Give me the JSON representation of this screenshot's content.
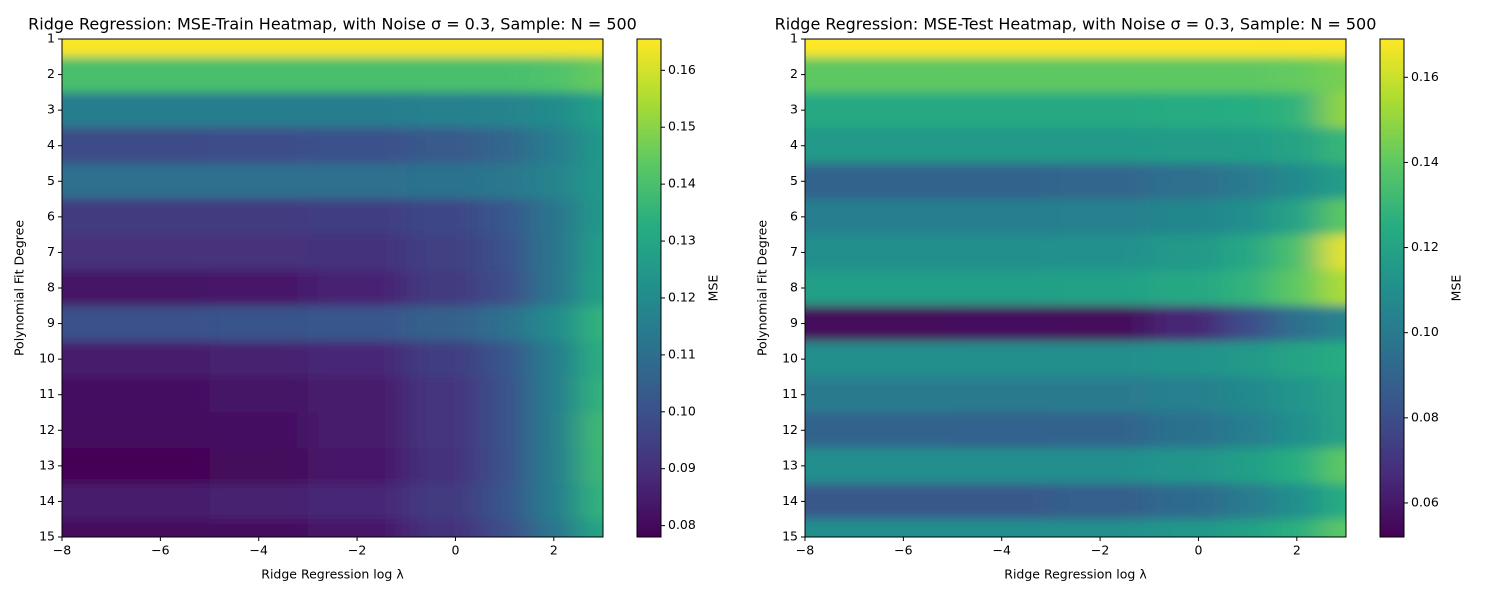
{
  "chart_data": [
    {
      "type": "heatmap",
      "title": "Ridge Regression: MSE-Train Heatmap, with Noise σ = 0.3, Sample: N = 500",
      "x_label": "Ridge Regression log λ",
      "y_label": "Polynomial Fit Degree",
      "colorbar_label": "MSE",
      "colormap": "viridis",
      "x": [
        -8,
        -6,
        -4,
        -2,
        0,
        1,
        2,
        3
      ],
      "y": [
        1,
        2,
        3,
        4,
        5,
        6,
        7,
        8,
        9,
        10,
        11,
        12,
        13,
        14,
        15
      ],
      "values": [
        [
          0.165,
          0.165,
          0.165,
          0.165,
          0.165,
          0.165,
          0.165,
          0.165
        ],
        [
          0.14,
          0.14,
          0.14,
          0.14,
          0.14,
          0.14,
          0.141,
          0.145
        ],
        [
          0.115,
          0.115,
          0.115,
          0.115,
          0.116,
          0.117,
          0.12,
          0.128
        ],
        [
          0.098,
          0.098,
          0.099,
          0.1,
          0.103,
          0.107,
          0.115,
          0.125
        ],
        [
          0.11,
          0.11,
          0.11,
          0.11,
          0.111,
          0.113,
          0.117,
          0.125
        ],
        [
          0.093,
          0.093,
          0.093,
          0.094,
          0.097,
          0.102,
          0.112,
          0.125
        ],
        [
          0.09,
          0.09,
          0.09,
          0.091,
          0.095,
          0.1,
          0.112,
          0.127
        ],
        [
          0.083,
          0.083,
          0.084,
          0.087,
          0.093,
          0.099,
          0.112,
          0.128
        ],
        [
          0.1,
          0.1,
          0.101,
          0.102,
          0.105,
          0.11,
          0.12,
          0.135
        ],
        [
          0.085,
          0.085,
          0.086,
          0.088,
          0.094,
          0.101,
          0.115,
          0.133
        ],
        [
          0.082,
          0.082,
          0.083,
          0.085,
          0.092,
          0.1,
          0.115,
          0.135
        ],
        [
          0.081,
          0.081,
          0.082,
          0.085,
          0.092,
          0.1,
          0.115,
          0.138
        ],
        [
          0.079,
          0.079,
          0.08,
          0.084,
          0.091,
          0.1,
          0.115,
          0.137
        ],
        [
          0.085,
          0.085,
          0.086,
          0.088,
          0.093,
          0.101,
          0.115,
          0.135
        ],
        [
          0.08,
          0.08,
          0.081,
          0.084,
          0.091,
          0.099,
          0.112,
          0.13
        ]
      ],
      "xlim": [
        -8,
        3
      ],
      "xticks": [
        {
          "value": -8,
          "label": "−8"
        },
        {
          "value": -6,
          "label": "−6"
        },
        {
          "value": -4,
          "label": "−4"
        },
        {
          "value": -2,
          "label": "−2"
        },
        0,
        2
      ],
      "ylim": [
        15,
        1
      ],
      "yticks": [
        1,
        2,
        3,
        4,
        5,
        6,
        7,
        8,
        9,
        10,
        11,
        12,
        13,
        14,
        15
      ],
      "clim": [
        0.078,
        0.1655
      ],
      "cticks": [
        0.08,
        0.09,
        {
          "value": 0.1,
          "label": "0.10"
        },
        0.11,
        0.12,
        0.13,
        0.14,
        0.15,
        0.16
      ]
    },
    {
      "type": "heatmap",
      "title": "Ridge Regression: MSE-Test Heatmap, with Noise σ = 0.3, Sample: N = 500",
      "x_label": "Ridge Regression log λ",
      "y_label": "Polynomial Fit Degree",
      "colorbar_label": "MSE",
      "colormap": "viridis",
      "x": [
        -8,
        -6,
        -4,
        -2,
        0,
        1,
        2,
        3
      ],
      "y": [
        1,
        2,
        3,
        4,
        5,
        6,
        7,
        8,
        9,
        10,
        11,
        12,
        13,
        14,
        15
      ],
      "values": [
        [
          0.169,
          0.169,
          0.169,
          0.169,
          0.169,
          0.169,
          0.169,
          0.169
        ],
        [
          0.14,
          0.14,
          0.14,
          0.14,
          0.14,
          0.14,
          0.141,
          0.145
        ],
        [
          0.123,
          0.123,
          0.123,
          0.123,
          0.124,
          0.125,
          0.128,
          0.15
        ],
        [
          0.115,
          0.115,
          0.115,
          0.115,
          0.116,
          0.117,
          0.12,
          0.13
        ],
        [
          0.09,
          0.09,
          0.09,
          0.091,
          0.095,
          0.1,
          0.108,
          0.118
        ],
        [
          0.102,
          0.102,
          0.102,
          0.103,
          0.106,
          0.11,
          0.12,
          0.14
        ],
        [
          0.11,
          0.11,
          0.11,
          0.111,
          0.115,
          0.122,
          0.135,
          0.165
        ],
        [
          0.118,
          0.118,
          0.118,
          0.119,
          0.122,
          0.128,
          0.14,
          0.155
        ],
        [
          0.055,
          0.055,
          0.056,
          0.055,
          0.065,
          0.08,
          0.095,
          0.105
        ],
        [
          0.11,
          0.11,
          0.11,
          0.11,
          0.112,
          0.115,
          0.12,
          0.125
        ],
        [
          0.1,
          0.1,
          0.1,
          0.1,
          0.103,
          0.107,
          0.113,
          0.12
        ],
        [
          0.09,
          0.09,
          0.089,
          0.09,
          0.096,
          0.102,
          0.11,
          0.12
        ],
        [
          0.11,
          0.11,
          0.11,
          0.11,
          0.113,
          0.118,
          0.125,
          0.14
        ],
        [
          0.085,
          0.085,
          0.085,
          0.087,
          0.093,
          0.1,
          0.11,
          0.125
        ],
        [
          0.11,
          0.11,
          0.11,
          0.111,
          0.114,
          0.119,
          0.126,
          0.14
        ]
      ],
      "xlim": [
        -8,
        3
      ],
      "xticks": [
        {
          "value": -8,
          "label": "−8"
        },
        {
          "value": -6,
          "label": "−6"
        },
        {
          "value": -4,
          "label": "−4"
        },
        {
          "value": -2,
          "label": "−2"
        },
        0,
        2
      ],
      "ylim": [
        15,
        1
      ],
      "yticks": [
        1,
        2,
        3,
        4,
        5,
        6,
        7,
        8,
        9,
        10,
        11,
        12,
        13,
        14,
        15
      ],
      "clim": [
        0.052,
        0.169
      ],
      "cticks": [
        0.06,
        0.08,
        {
          "value": 0.1,
          "label": "0.10"
        },
        0.12,
        0.14,
        0.16
      ]
    }
  ]
}
